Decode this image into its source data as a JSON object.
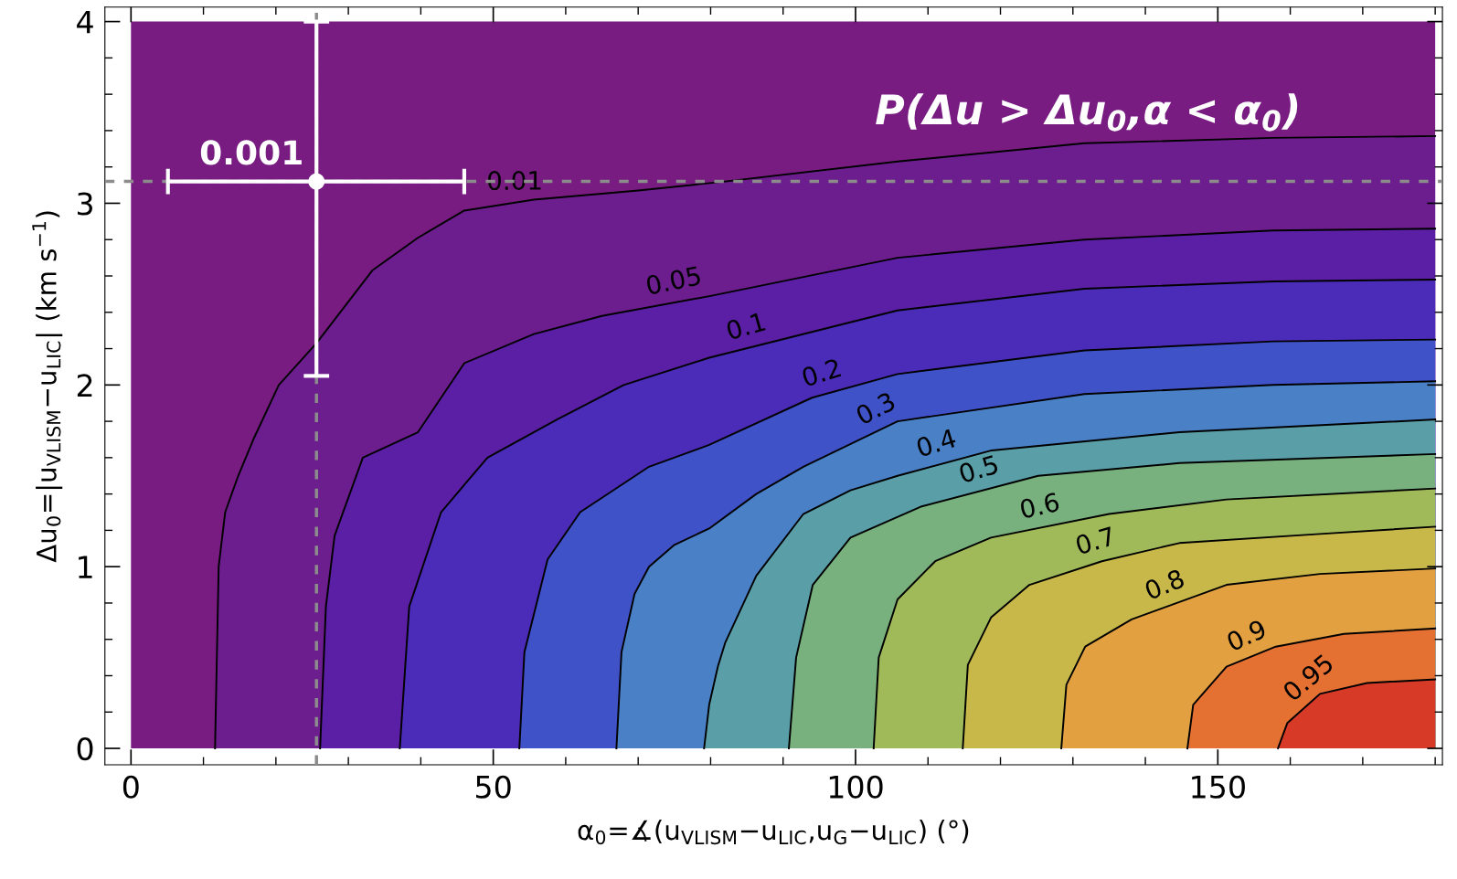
{
  "chart_data": {
    "type": "area",
    "xlabel": "α$_{0}$=∡(u$_{VLISM}$−u$_{LIC}$,u$_{G}$−u$_{LIC}$) (°)",
    "ylabel": "Δu$_{0}$=|u$_{VLISM}$−u$_{LIC}$| (km s$^{−1}$)",
    "annotations": [
      "P(Δu > Δu$_{0}$,α < α$_{0}$)",
      {
        "text": "0.001",
        "x": 25.6,
        "y": 3.12
      }
    ],
    "xlim": [
      -3.6,
      181
    ],
    "ylim": [
      -0.09,
      4.08
    ],
    "xticks": [
      0,
      {
        "value": 10,
        "label": null
      },
      {
        "value": 20,
        "label": null
      },
      {
        "value": 30,
        "label": null
      },
      {
        "value": 40,
        "label": null
      },
      50,
      {
        "value": 60,
        "label": null
      },
      {
        "value": 70,
        "label": null
      },
      {
        "value": 80,
        "label": null
      },
      {
        "value": 90,
        "label": null
      },
      100,
      {
        "value": 110,
        "label": null
      },
      {
        "value": 120,
        "label": null
      },
      {
        "value": 130,
        "label": null
      },
      {
        "value": 140,
        "label": null
      },
      150,
      {
        "value": 160,
        "label": null
      },
      {
        "value": 170,
        "label": null
      },
      {
        "value": 180,
        "label": null
      }
    ],
    "yticks": [
      0,
      {
        "value": 0.2,
        "label": null
      },
      {
        "value": 0.4,
        "label": null
      },
      {
        "value": 0.6,
        "label": null
      },
      {
        "value": 0.8,
        "label": null
      },
      1,
      {
        "value": 1.2,
        "label": null
      },
      {
        "value": 1.4,
        "label": null
      },
      {
        "value": 1.6,
        "label": null
      },
      {
        "value": 1.8,
        "label": null
      },
      2,
      {
        "value": 2.2,
        "label": null
      },
      {
        "value": 2.4,
        "label": null
      },
      {
        "value": 2.6,
        "label": null
      },
      {
        "value": 2.8,
        "label": null
      },
      3,
      {
        "value": 3.2,
        "label": null
      },
      {
        "value": 3.4,
        "label": null
      },
      {
        "value": 3.6,
        "label": null
      },
      {
        "value": 3.8,
        "label": null
      },
      4
    ],
    "ref_lines": [
      {
        "axis": "y",
        "value": 3.12,
        "color": "#8c8c8c",
        "line_style": "dashed"
      },
      {
        "axis": "x",
        "value": 25.6,
        "color": "#8c8c8c",
        "line_style": "dashed"
      }
    ],
    "bands": [
      {
        "axis": "x",
        "from": 0,
        "to": 180,
        "color": "#781c82"
      }
    ],
    "series": [
      {
        "name": "0.01",
        "color": "#6c1d8e",
        "x": [
          11.6,
          12.1,
          13,
          14.8,
          17,
          20.4,
          25.6,
          33.3,
          39.6,
          46,
          55.6,
          70,
          82,
          105.8,
          131.6,
          157.6,
          180
        ],
        "values": [
          0,
          1,
          1.3,
          1.5,
          1.71,
          2.0,
          2.23,
          2.63,
          2.81,
          2.96,
          3.02,
          3.07,
          3.12,
          3.23,
          3.33,
          3.36,
          3.37
        ]
      },
      {
        "name": "0.05",
        "color": "#5a1fa4",
        "x": [
          26.1,
          26.9,
          28.1,
          32,
          39.6,
          46,
          55.6,
          65,
          80,
          105.8,
          131.6,
          157.6,
          180
        ],
        "values": [
          0,
          0.78,
          1.17,
          1.6,
          1.74,
          2.12,
          2.28,
          2.38,
          2.49,
          2.7,
          2.8,
          2.85,
          2.86
        ]
      },
      {
        "name": "0.1",
        "color": "#4a2cb8",
        "x": [
          37.1,
          38.4,
          42.8,
          49.2,
          58.8,
          68,
          79.8,
          105.8,
          131.6,
          157.6,
          180
        ],
        "values": [
          0,
          0.78,
          1.3,
          1.6,
          1.81,
          2.0,
          2.15,
          2.41,
          2.53,
          2.57,
          2.58
        ]
      },
      {
        "name": "0.2",
        "color": "#3f52c8",
        "x": [
          53.6,
          54.3,
          57.5,
          62,
          71.5,
          79.8,
          94,
          105.8,
          131.6,
          157.6,
          180
        ],
        "values": [
          0,
          0.53,
          1.04,
          1.3,
          1.55,
          1.67,
          1.93,
          2.06,
          2.19,
          2.24,
          2.25
        ]
      },
      {
        "name": "0.3",
        "color": "#4a80c6",
        "x": [
          67,
          67.7,
          69.5,
          71.5,
          75,
          79.8,
          86.3,
          92.8,
          105.8,
          131.6,
          157.6,
          180
        ],
        "values": [
          0,
          0.53,
          0.85,
          1.0,
          1.12,
          1.21,
          1.4,
          1.55,
          1.8,
          1.95,
          2.0,
          2.02
        ]
      },
      {
        "name": "0.4",
        "color": "#5a9ea8",
        "x": [
          79.1,
          79.8,
          81,
          82,
          86.3,
          92.8,
          99.3,
          105.8,
          118.8,
          144.7,
          180
        ],
        "values": [
          0,
          0.24,
          0.45,
          0.58,
          0.95,
          1.29,
          1.42,
          1.5,
          1.64,
          1.74,
          1.81
        ]
      },
      {
        "name": "0.5",
        "color": "#78b07e",
        "x": [
          90.8,
          91.8,
          94.1,
          99.3,
          109,
          125.2,
          144.7,
          180
        ],
        "values": [
          0,
          0.5,
          0.9,
          1.16,
          1.33,
          1.5,
          1.57,
          1.62
        ]
      },
      {
        "name": "0.6",
        "color": "#a0ba5a",
        "x": [
          102.5,
          103.2,
          105.8,
          111,
          118.7,
          135,
          151.2,
          180
        ],
        "values": [
          0,
          0.5,
          0.82,
          1.03,
          1.16,
          1.29,
          1.37,
          1.43
        ]
      },
      {
        "name": "0.7",
        "color": "#c8b84a",
        "x": [
          114.8,
          115.5,
          118.7,
          124,
          134,
          144.7,
          164.1,
          180
        ],
        "values": [
          0,
          0.46,
          0.72,
          0.9,
          1.03,
          1.13,
          1.18,
          1.22
        ]
      },
      {
        "name": "0.8",
        "color": "#e2a040",
        "x": [
          128.4,
          129.1,
          131.7,
          138.1,
          151.2,
          164.1,
          180
        ],
        "values": [
          0,
          0.35,
          0.56,
          0.71,
          0.9,
          0.96,
          0.99
        ]
      },
      {
        "name": "0.9",
        "color": "#e47032",
        "x": [
          145.8,
          146.6,
          151.2,
          158,
          167.4,
          180
        ],
        "values": [
          0,
          0.24,
          0.45,
          0.56,
          0.63,
          0.66
        ]
      },
      {
        "name": "0.95",
        "color": "#d83a28",
        "x": [
          158.3,
          159.6,
          164.1,
          170.6,
          180
        ],
        "values": [
          0,
          0.14,
          0.3,
          0.36,
          0.38
        ]
      },
      {
        "type": "scatter",
        "color": "#ffffff",
        "x": [
          25.6
        ],
        "values": [
          3.12
        ],
        "errors": [
          [
            2.05,
            4.0
          ]
        ],
        "xerrors": [
          [
            5.1,
            46
          ]
        ]
      }
    ]
  }
}
